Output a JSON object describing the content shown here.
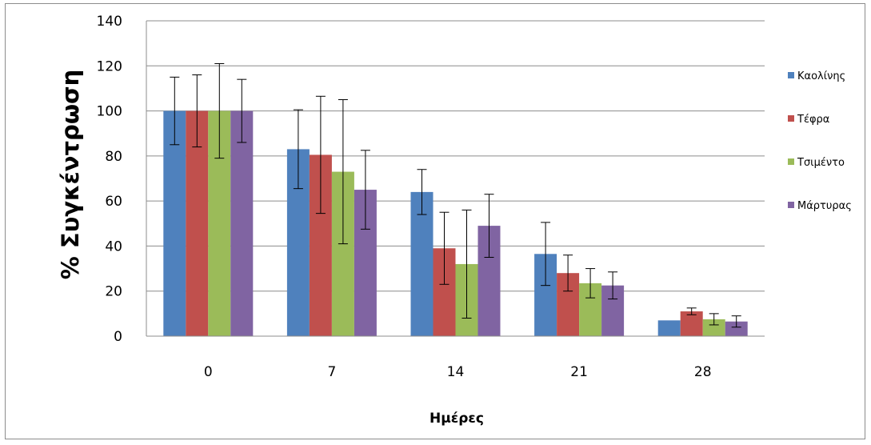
{
  "chart_data": {
    "type": "bar",
    "title": "",
    "xlabel": "Ημέρες",
    "ylabel": "% Συγκέντρωση",
    "categories": [
      "0",
      "7",
      "14",
      "21",
      "28"
    ],
    "ylim": [
      0,
      140
    ],
    "yticks": [
      0,
      20,
      40,
      60,
      80,
      100,
      120,
      140
    ],
    "grid": true,
    "legend_position": "right",
    "error_bars": true,
    "series": [
      {
        "name": "Καολίνης",
        "color": "#4f81bd",
        "values": [
          100,
          83,
          64,
          36.5,
          7
        ],
        "errors": [
          15,
          17.5,
          10,
          14,
          0
        ]
      },
      {
        "name": "Τέφρα",
        "color": "#c0504d",
        "values": [
          100,
          80.5,
          39,
          28,
          11
        ],
        "errors": [
          16,
          26,
          16,
          8,
          1.5
        ]
      },
      {
        "name": "Τσιμέντο",
        "color": "#9bbb59",
        "values": [
          100,
          73,
          32,
          23.5,
          7.5
        ],
        "errors": [
          21,
          32,
          24,
          6.5,
          2.5
        ]
      },
      {
        "name": "Μάρτυρας",
        "color": "#8064a2",
        "values": [
          100,
          65,
          49,
          22.5,
          6.5
        ],
        "errors": [
          14,
          17.5,
          14,
          6,
          2.5
        ]
      }
    ]
  }
}
